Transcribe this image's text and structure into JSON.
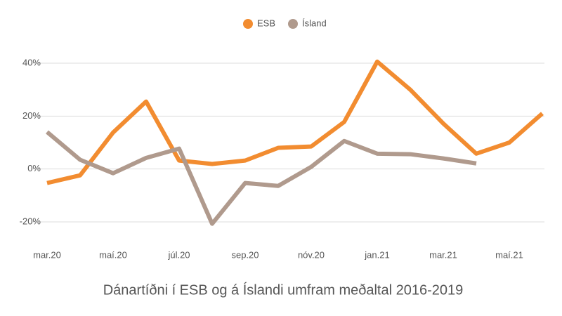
{
  "chart_data": {
    "type": "line",
    "title": "Dánartíðni í ESB og á Íslandi umfram meðaltal 2016-2019",
    "categories": [
      "mar.20",
      null,
      "maí.20",
      null,
      "júl.20",
      null,
      "sep.20",
      null,
      "nóv.20",
      null,
      "jan.21",
      null,
      "mar.21",
      null,
      "maí.21",
      null
    ],
    "series": [
      {
        "name": "ESB",
        "color": "#f28c30",
        "values": [
          -5.3,
          -2.4,
          13.8,
          25.5,
          3.2,
          1.9,
          3.2,
          8,
          8.5,
          17.8,
          40.6,
          30,
          17.2,
          5.8,
          10,
          21
        ]
      },
      {
        "name": "Ísland",
        "color": "#b09a8d",
        "values": [
          14,
          3.5,
          -1.6,
          4.2,
          7.7,
          -20.7,
          -5.3,
          -6.4,
          0.8,
          10.6,
          5.8,
          5.6,
          4,
          2.1,
          null,
          null
        ]
      }
    ],
    "ylim": [
      -26,
      43
    ],
    "yticks": [
      {
        "value": -20,
        "label": "-20%"
      },
      {
        "value": 0,
        "label": "0%"
      },
      {
        "value": 20,
        "label": "20%"
      },
      {
        "value": 40,
        "label": "40%"
      }
    ],
    "grid": true,
    "legend": "top"
  }
}
